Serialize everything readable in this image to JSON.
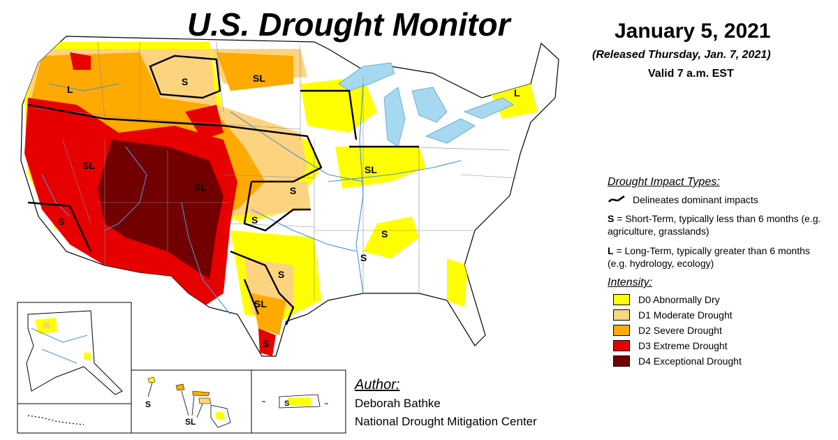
{
  "header": {
    "title": "U.S. Drought Monitor",
    "date": "January 5, 2021",
    "released": "(Released Thursday, Jan. 7, 2021)",
    "valid": "Valid 7 a.m. EST"
  },
  "legend": {
    "impact_heading": "Drought Impact Types:",
    "delineates": "Delineates dominant impacts",
    "short_term_key": "S",
    "short_term_text": " = Short-Term, typically less than 6 months (e.g. agriculture, grasslands)",
    "long_term_key": "L",
    "long_term_text": " = Long-Term, typically greater than 6 months (e.g. hydrology, ecology)",
    "intensity_heading": "Intensity:",
    "intensity": [
      {
        "label": "D0 Abnormally Dry",
        "color": "#ffff00"
      },
      {
        "label": "D1 Moderate Drought",
        "color": "#fcd37f"
      },
      {
        "label": "D2 Severe Drought",
        "color": "#ffaa00"
      },
      {
        "label": "D3 Extreme Drought",
        "color": "#e60000"
      },
      {
        "label": "D4 Exceptional Drought",
        "color": "#730000"
      }
    ]
  },
  "map": {
    "labels": {
      "l1": "L",
      "l2": "S",
      "l3": "SL",
      "l4": "SL",
      "l5": "SL",
      "l6": "S",
      "l7": "S",
      "l8": "SL",
      "l9": "S",
      "l10": "S",
      "l11": "S",
      "l12": "SL",
      "l13": "S",
      "l14": "L",
      "l15": "S"
    },
    "hawaii_s": "S",
    "hawaii_sl": "SL",
    "puerto_rico_s": "S"
  },
  "author": {
    "label": "Author:",
    "name": "Deborah Bathke",
    "org": "National Drought Mitigation Center"
  }
}
